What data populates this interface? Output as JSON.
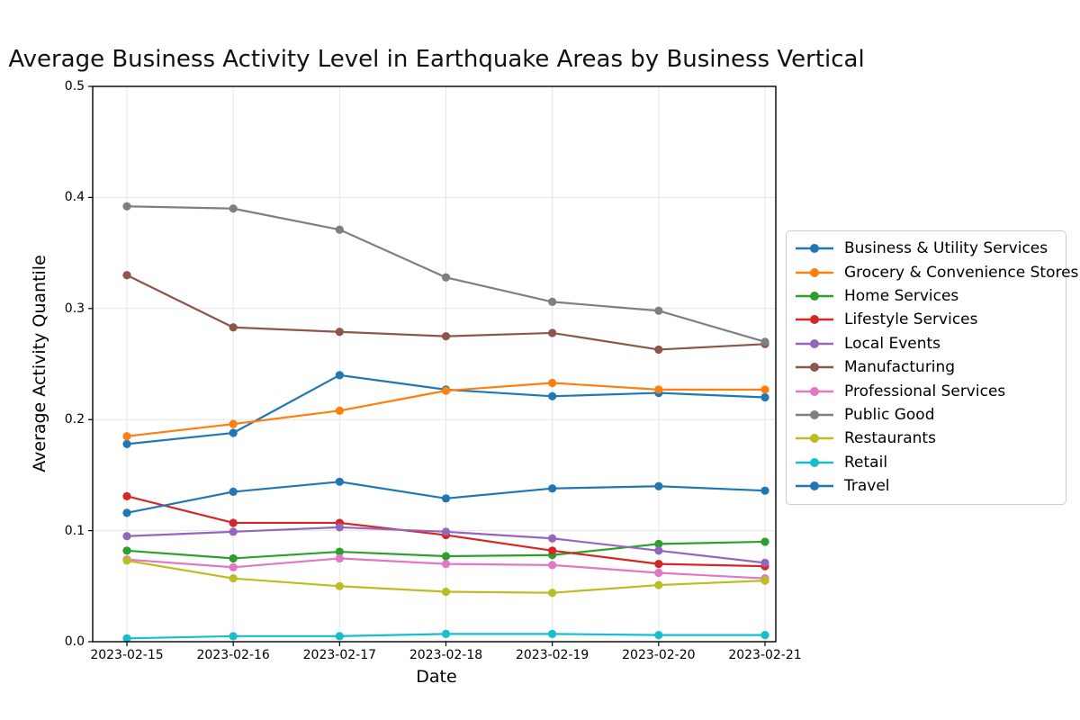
{
  "chart_data": {
    "type": "line",
    "marker": "circle",
    "title": "Average Business Activity Level in Earthquake Areas by Business Vertical",
    "xlabel": "Date",
    "ylabel": "Average Activity Quantile",
    "x": [
      "2023-02-15",
      "2023-02-16",
      "2023-02-17",
      "2023-02-18",
      "2023-02-19",
      "2023-02-20",
      "2023-02-21"
    ],
    "ylim": [
      0.0,
      0.5
    ],
    "yticks": [
      0.0,
      0.1,
      0.2,
      0.3,
      0.4,
      0.5
    ],
    "y_ticklabels": [
      "0.0",
      "0.1",
      "0.2",
      "0.3",
      "0.4",
      "0.5"
    ],
    "grid": true,
    "legend_position": "center-right-outside",
    "series": [
      {
        "name": "Business & Utility Services",
        "color": "#1f77b4",
        "values": [
          0.178,
          0.188,
          0.24,
          0.227,
          0.221,
          0.224,
          0.22
        ]
      },
      {
        "name": "Grocery & Convenience Stores",
        "color": "#ff7f0e",
        "values": [
          0.185,
          0.196,
          0.208,
          0.226,
          0.233,
          0.227,
          0.227
        ]
      },
      {
        "name": "Home Services",
        "color": "#2ca02c",
        "values": [
          0.082,
          0.075,
          0.081,
          0.077,
          0.078,
          0.088,
          0.09
        ]
      },
      {
        "name": "Lifestyle Services",
        "color": "#d62728",
        "values": [
          0.131,
          0.107,
          0.107,
          0.096,
          0.082,
          0.07,
          0.068
        ]
      },
      {
        "name": "Local Events",
        "color": "#9467bd",
        "values": [
          0.095,
          0.099,
          0.103,
          0.099,
          0.093,
          0.082,
          0.071
        ]
      },
      {
        "name": "Manufacturing",
        "color": "#8c564b",
        "values": [
          0.33,
          0.283,
          0.279,
          0.275,
          0.278,
          0.263,
          0.268
        ]
      },
      {
        "name": "Professional Services",
        "color": "#e377c2",
        "values": [
          0.074,
          0.067,
          0.075,
          0.07,
          0.069,
          0.062,
          0.057
        ]
      },
      {
        "name": "Public Good",
        "color": "#7f7f7f",
        "values": [
          0.392,
          0.39,
          0.371,
          0.328,
          0.306,
          0.298,
          0.27
        ]
      },
      {
        "name": "Restaurants",
        "color": "#bcbd22",
        "values": [
          0.073,
          0.057,
          0.05,
          0.045,
          0.044,
          0.051,
          0.055
        ]
      },
      {
        "name": "Retail",
        "color": "#17becf",
        "values": [
          0.003,
          0.005,
          0.005,
          0.007,
          0.007,
          0.006,
          0.006
        ]
      },
      {
        "name": "Travel",
        "color": "#1f77b4",
        "values": [
          0.116,
          0.135,
          0.144,
          0.129,
          0.138,
          0.14,
          0.136
        ]
      }
    ],
    "style": {
      "grid_color": "#e5e5e5",
      "spine_color": "#000000",
      "legend_border_color": "#cccccc",
      "background": "#ffffff"
    }
  }
}
